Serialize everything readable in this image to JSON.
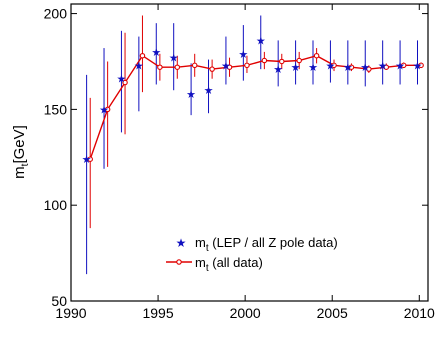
{
  "chart_data": {
    "type": "scatter",
    "ylabel_main": "m",
    "ylabel_sub": "t",
    "ylabel_unit": "[GeV]",
    "xlim": [
      1990,
      2010.5
    ],
    "ylim": [
      50,
      205
    ],
    "x_ticks": [
      1990,
      1995,
      2000,
      2005,
      2010
    ],
    "y_ticks": [
      50,
      100,
      150,
      200
    ],
    "grid": false,
    "legend_position": "lower-center",
    "series": [
      {
        "legend_main": "m",
        "legend_sub": "t",
        "legend_rest": " (LEP / all Z pole data)",
        "marker": "star",
        "color": "#1010c0",
        "points": [
          {
            "x": 1991,
            "y": 124,
            "low": 64,
            "high": 168
          },
          {
            "x": 1992,
            "y": 150,
            "low": 119,
            "high": 182
          },
          {
            "x": 1993,
            "y": 166,
            "low": 138,
            "high": 191
          },
          {
            "x": 1994,
            "y": 173,
            "low": 149,
            "high": 188
          },
          {
            "x": 1995,
            "y": 180,
            "low": 163,
            "high": 195
          },
          {
            "x": 1996,
            "y": 177,
            "low": 160,
            "high": 195
          },
          {
            "x": 1997,
            "y": 158,
            "low": 147,
            "high": 174
          },
          {
            "x": 1998,
            "y": 160,
            "low": 148,
            "high": 176
          },
          {
            "x": 1999,
            "y": 173,
            "low": 163,
            "high": 188
          },
          {
            "x": 2000,
            "y": 179,
            "low": 165,
            "high": 194
          },
          {
            "x": 2001,
            "y": 186,
            "low": 171,
            "high": 199
          },
          {
            "x": 2002,
            "y": 171,
            "low": 162,
            "high": 186
          },
          {
            "x": 2003,
            "y": 172,
            "low": 163,
            "high": 186
          },
          {
            "x": 2004,
            "y": 172,
            "low": 163,
            "high": 186
          },
          {
            "x": 2005,
            "y": 173,
            "low": 164,
            "high": 186
          },
          {
            "x": 2006,
            "y": 172,
            "low": 163,
            "high": 186
          },
          {
            "x": 2007,
            "y": 172,
            "low": 162,
            "high": 186
          },
          {
            "x": 2008,
            "y": 173,
            "low": 163,
            "high": 186
          },
          {
            "x": 2009,
            "y": 173,
            "low": 163,
            "high": 186
          },
          {
            "x": 2010,
            "y": 173,
            "low": 163,
            "high": 186
          }
        ]
      },
      {
        "legend_main": "m",
        "legend_sub": "t",
        "legend_rest": "  (all data)",
        "marker": "circle-line",
        "color": "#e00000",
        "points": [
          {
            "x": 1991,
            "y": 124,
            "low": 88,
            "high": 156
          },
          {
            "x": 1992,
            "y": 150,
            "low": 120,
            "high": 175
          },
          {
            "x": 1993,
            "y": 164,
            "low": 137,
            "high": 190
          },
          {
            "x": 1994,
            "y": 178,
            "low": 159,
            "high": 199
          },
          {
            "x": 1995,
            "y": 172,
            "low": 165,
            "high": 179
          },
          {
            "x": 1996,
            "y": 172,
            "low": 166,
            "high": 178
          },
          {
            "x": 1997,
            "y": 173,
            "low": 167,
            "high": 179
          },
          {
            "x": 1998,
            "y": 171,
            "low": 166,
            "high": 176
          },
          {
            "x": 1999,
            "y": 172,
            "low": 167,
            "high": 177
          },
          {
            "x": 2000,
            "y": 173,
            "low": 169,
            "high": 178
          },
          {
            "x": 2001,
            "y": 175.5,
            "low": 171,
            "high": 180
          },
          {
            "x": 2002,
            "y": 175,
            "low": 171,
            "high": 179
          },
          {
            "x": 2003,
            "y": 175.5,
            "low": 171,
            "high": 180
          },
          {
            "x": 2004,
            "y": 178,
            "low": 174,
            "high": 182
          },
          {
            "x": 2005,
            "y": 173,
            "low": 170,
            "high": 176
          },
          {
            "x": 2006,
            "y": 172,
            "low": 170,
            "high": 174
          },
          {
            "x": 2007,
            "y": 171,
            "low": 169,
            "high": 173
          },
          {
            "x": 2008,
            "y": 172,
            "low": 171,
            "high": 174
          },
          {
            "x": 2009,
            "y": 173,
            "low": 172,
            "high": 174.5
          },
          {
            "x": 2010,
            "y": 173,
            "low": 172,
            "high": 174.5
          }
        ]
      }
    ]
  }
}
